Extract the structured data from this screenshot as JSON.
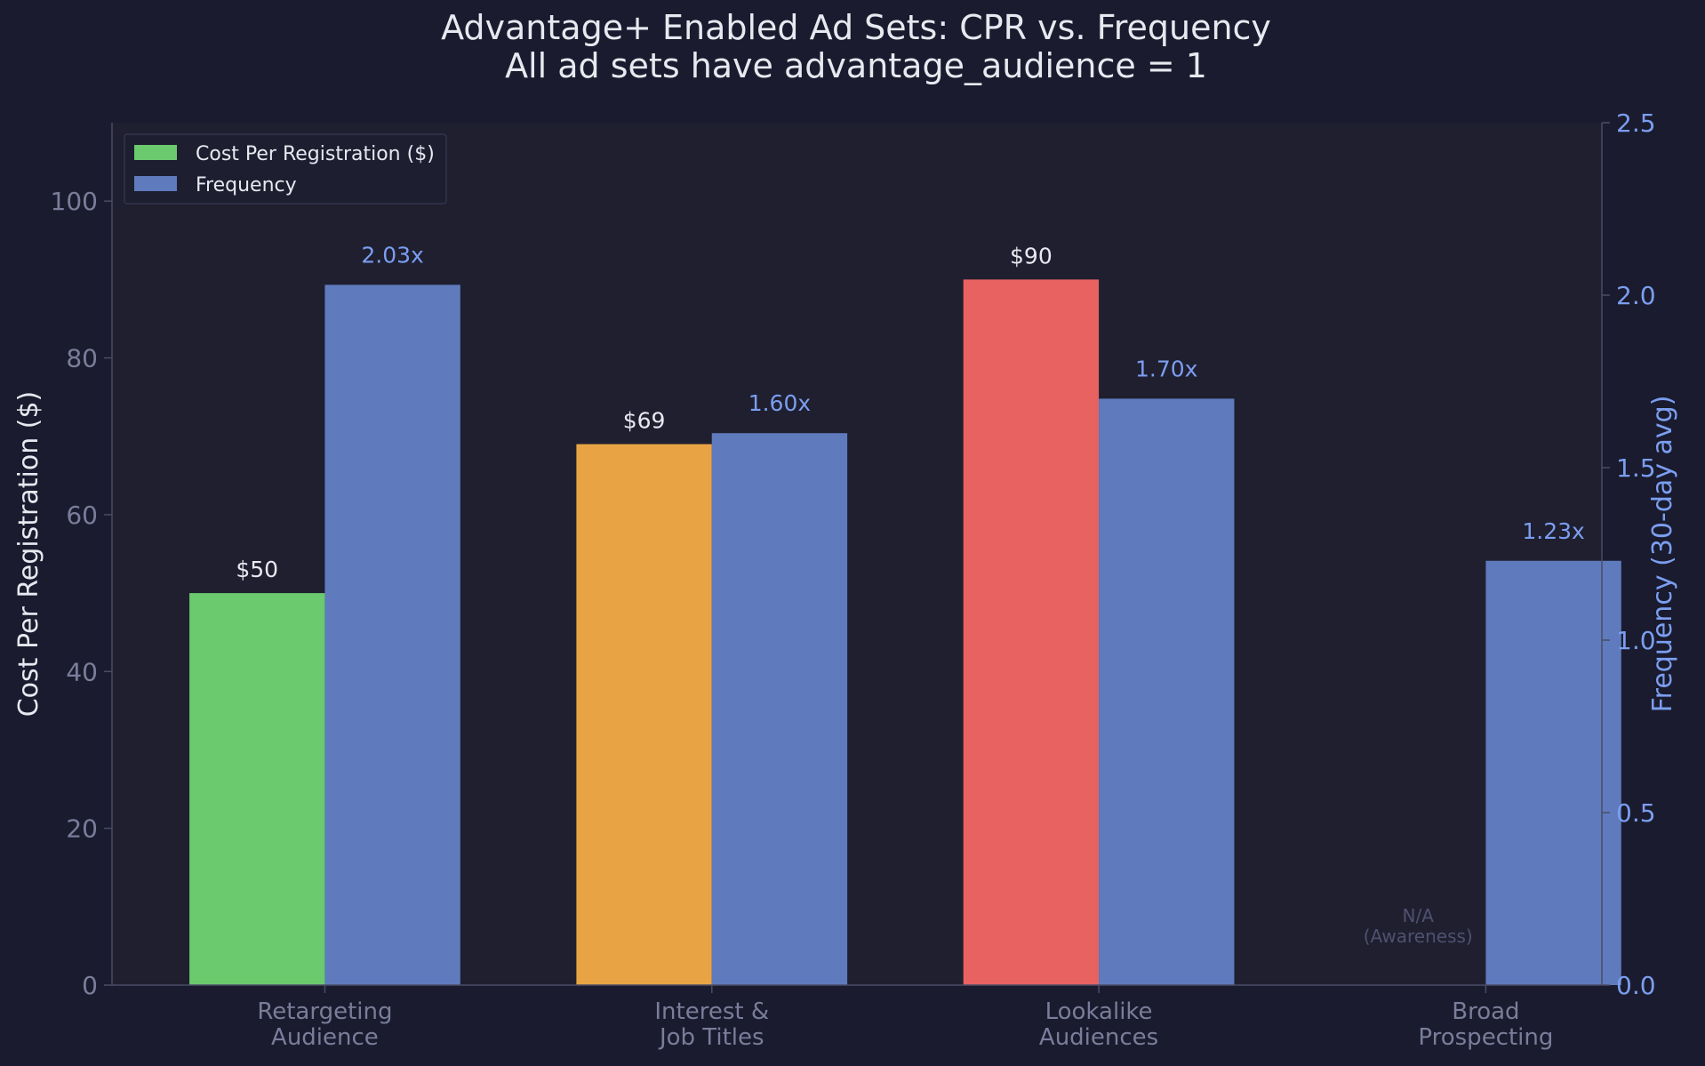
{
  "chart_data": {
    "type": "bar",
    "title": "Advantage+ Enabled Ad Sets: CPR vs. Frequency",
    "subtitle": "All ad sets have advantage_audience = 1",
    "categories": [
      [
        "Retargeting",
        "Audience"
      ],
      [
        "Interest &",
        "Job Titles"
      ],
      [
        "Lookalike",
        "Audiences"
      ],
      [
        "Broad",
        "Prospecting"
      ]
    ],
    "series": [
      {
        "name": "Cost Per Registration ($)",
        "axis": "left",
        "values": [
          50,
          69,
          90,
          null
        ],
        "labels": [
          "$50",
          "$69",
          "$90",
          ""
        ],
        "colors": [
          "#6bc96e",
          "#e8a444",
          "#e86262",
          null
        ],
        "legend_color": "#6bc96e"
      },
      {
        "name": "Frequency",
        "axis": "right",
        "values": [
          2.03,
          1.6,
          1.7,
          1.23
        ],
        "labels": [
          "2.03x",
          "1.60x",
          "1.70x",
          "1.23x"
        ],
        "color": "#5f7bbd"
      }
    ],
    "na_annotation": {
      "category_index": 3,
      "lines": [
        "N/A",
        "(Awareness)"
      ]
    },
    "ylabel": "Cost Per Registration ($)",
    "ylim": [
      0,
      110
    ],
    "yticks": [
      0,
      20,
      40,
      60,
      80,
      100
    ],
    "y2label": "Frequency (30-day avg)",
    "y2lim": [
      0,
      2.5
    ],
    "y2ticks": [
      "0.0",
      "0.5",
      "1.0",
      "1.5",
      "2.0",
      "2.5"
    ],
    "legend_position": "top-left",
    "grid": false,
    "colors": {
      "background": "#1a1b2e",
      "plot_background": "#1f1f30",
      "text": "#e8e8f0",
      "muted": "#7a7d9a",
      "axis_right": "#7b9ef0",
      "freq_label": "#7b9ef0",
      "spine": "#4a4c66"
    }
  }
}
